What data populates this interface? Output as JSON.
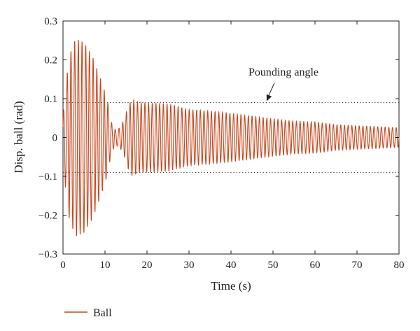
{
  "chart_data": {
    "type": "line",
    "xlabel": "Time (s)",
    "ylabel": "Disp. ball (rad)",
    "xlim": [
      0,
      80
    ],
    "ylim": [
      -0.3,
      0.3
    ],
    "x_ticks": [
      0,
      10,
      20,
      30,
      40,
      50,
      60,
      70,
      80
    ],
    "y_ticks": [
      -0.3,
      -0.2,
      -0.1,
      0,
      0.1,
      0.2,
      0.3
    ],
    "x_tick_labels": [
      "0",
      "10",
      "20",
      "30",
      "40",
      "50",
      "60",
      "70",
      "80"
    ],
    "y_tick_labels": [
      "−0.3",
      "−0.2",
      "−0.1",
      "0",
      "0.1",
      "0.2",
      "0.3"
    ],
    "grid": false,
    "reference_lines": [
      {
        "y": 0.09,
        "style": "dotted"
      },
      {
        "y": -0.09,
        "style": "dotted"
      }
    ],
    "annotation": {
      "text": "Pounding angle",
      "arrow_to": {
        "x": 48.5,
        "y": 0.09
      }
    },
    "series": [
      {
        "name": "Ball",
        "color": "#c8461c",
        "oscillation_period_s": 0.88,
        "envelope": [
          {
            "t": 0,
            "amp": 0.05
          },
          {
            "t": 0.5,
            "amp": 0.12
          },
          {
            "t": 1.5,
            "amp": 0.21
          },
          {
            "t": 3,
            "amp": 0.255
          },
          {
            "t": 5,
            "amp": 0.245
          },
          {
            "t": 7,
            "amp": 0.21
          },
          {
            "t": 9,
            "amp": 0.15
          },
          {
            "t": 10.5,
            "amp": 0.1
          },
          {
            "t": 11.5,
            "amp": 0.04
          },
          {
            "t": 12.5,
            "amp": 0.02
          },
          {
            "t": 13.5,
            "amp": 0.025
          },
          {
            "t": 14.5,
            "amp": 0.045
          },
          {
            "t": 15.5,
            "amp": 0.08
          },
          {
            "t": 16.5,
            "amp": 0.1
          },
          {
            "t": 18,
            "amp": 0.09
          },
          {
            "t": 25,
            "amp": 0.087
          },
          {
            "t": 30,
            "amp": 0.072
          },
          {
            "t": 35,
            "amp": 0.068
          },
          {
            "t": 40,
            "amp": 0.062
          },
          {
            "t": 45,
            "amp": 0.055
          },
          {
            "t": 50,
            "amp": 0.048
          },
          {
            "t": 55,
            "amp": 0.042
          },
          {
            "t": 60,
            "amp": 0.04
          },
          {
            "t": 65,
            "amp": 0.033
          },
          {
            "t": 70,
            "amp": 0.03
          },
          {
            "t": 75,
            "amp": 0.028
          },
          {
            "t": 80,
            "amp": 0.025
          }
        ]
      }
    ],
    "legend": {
      "placement": "bottom-left"
    }
  }
}
